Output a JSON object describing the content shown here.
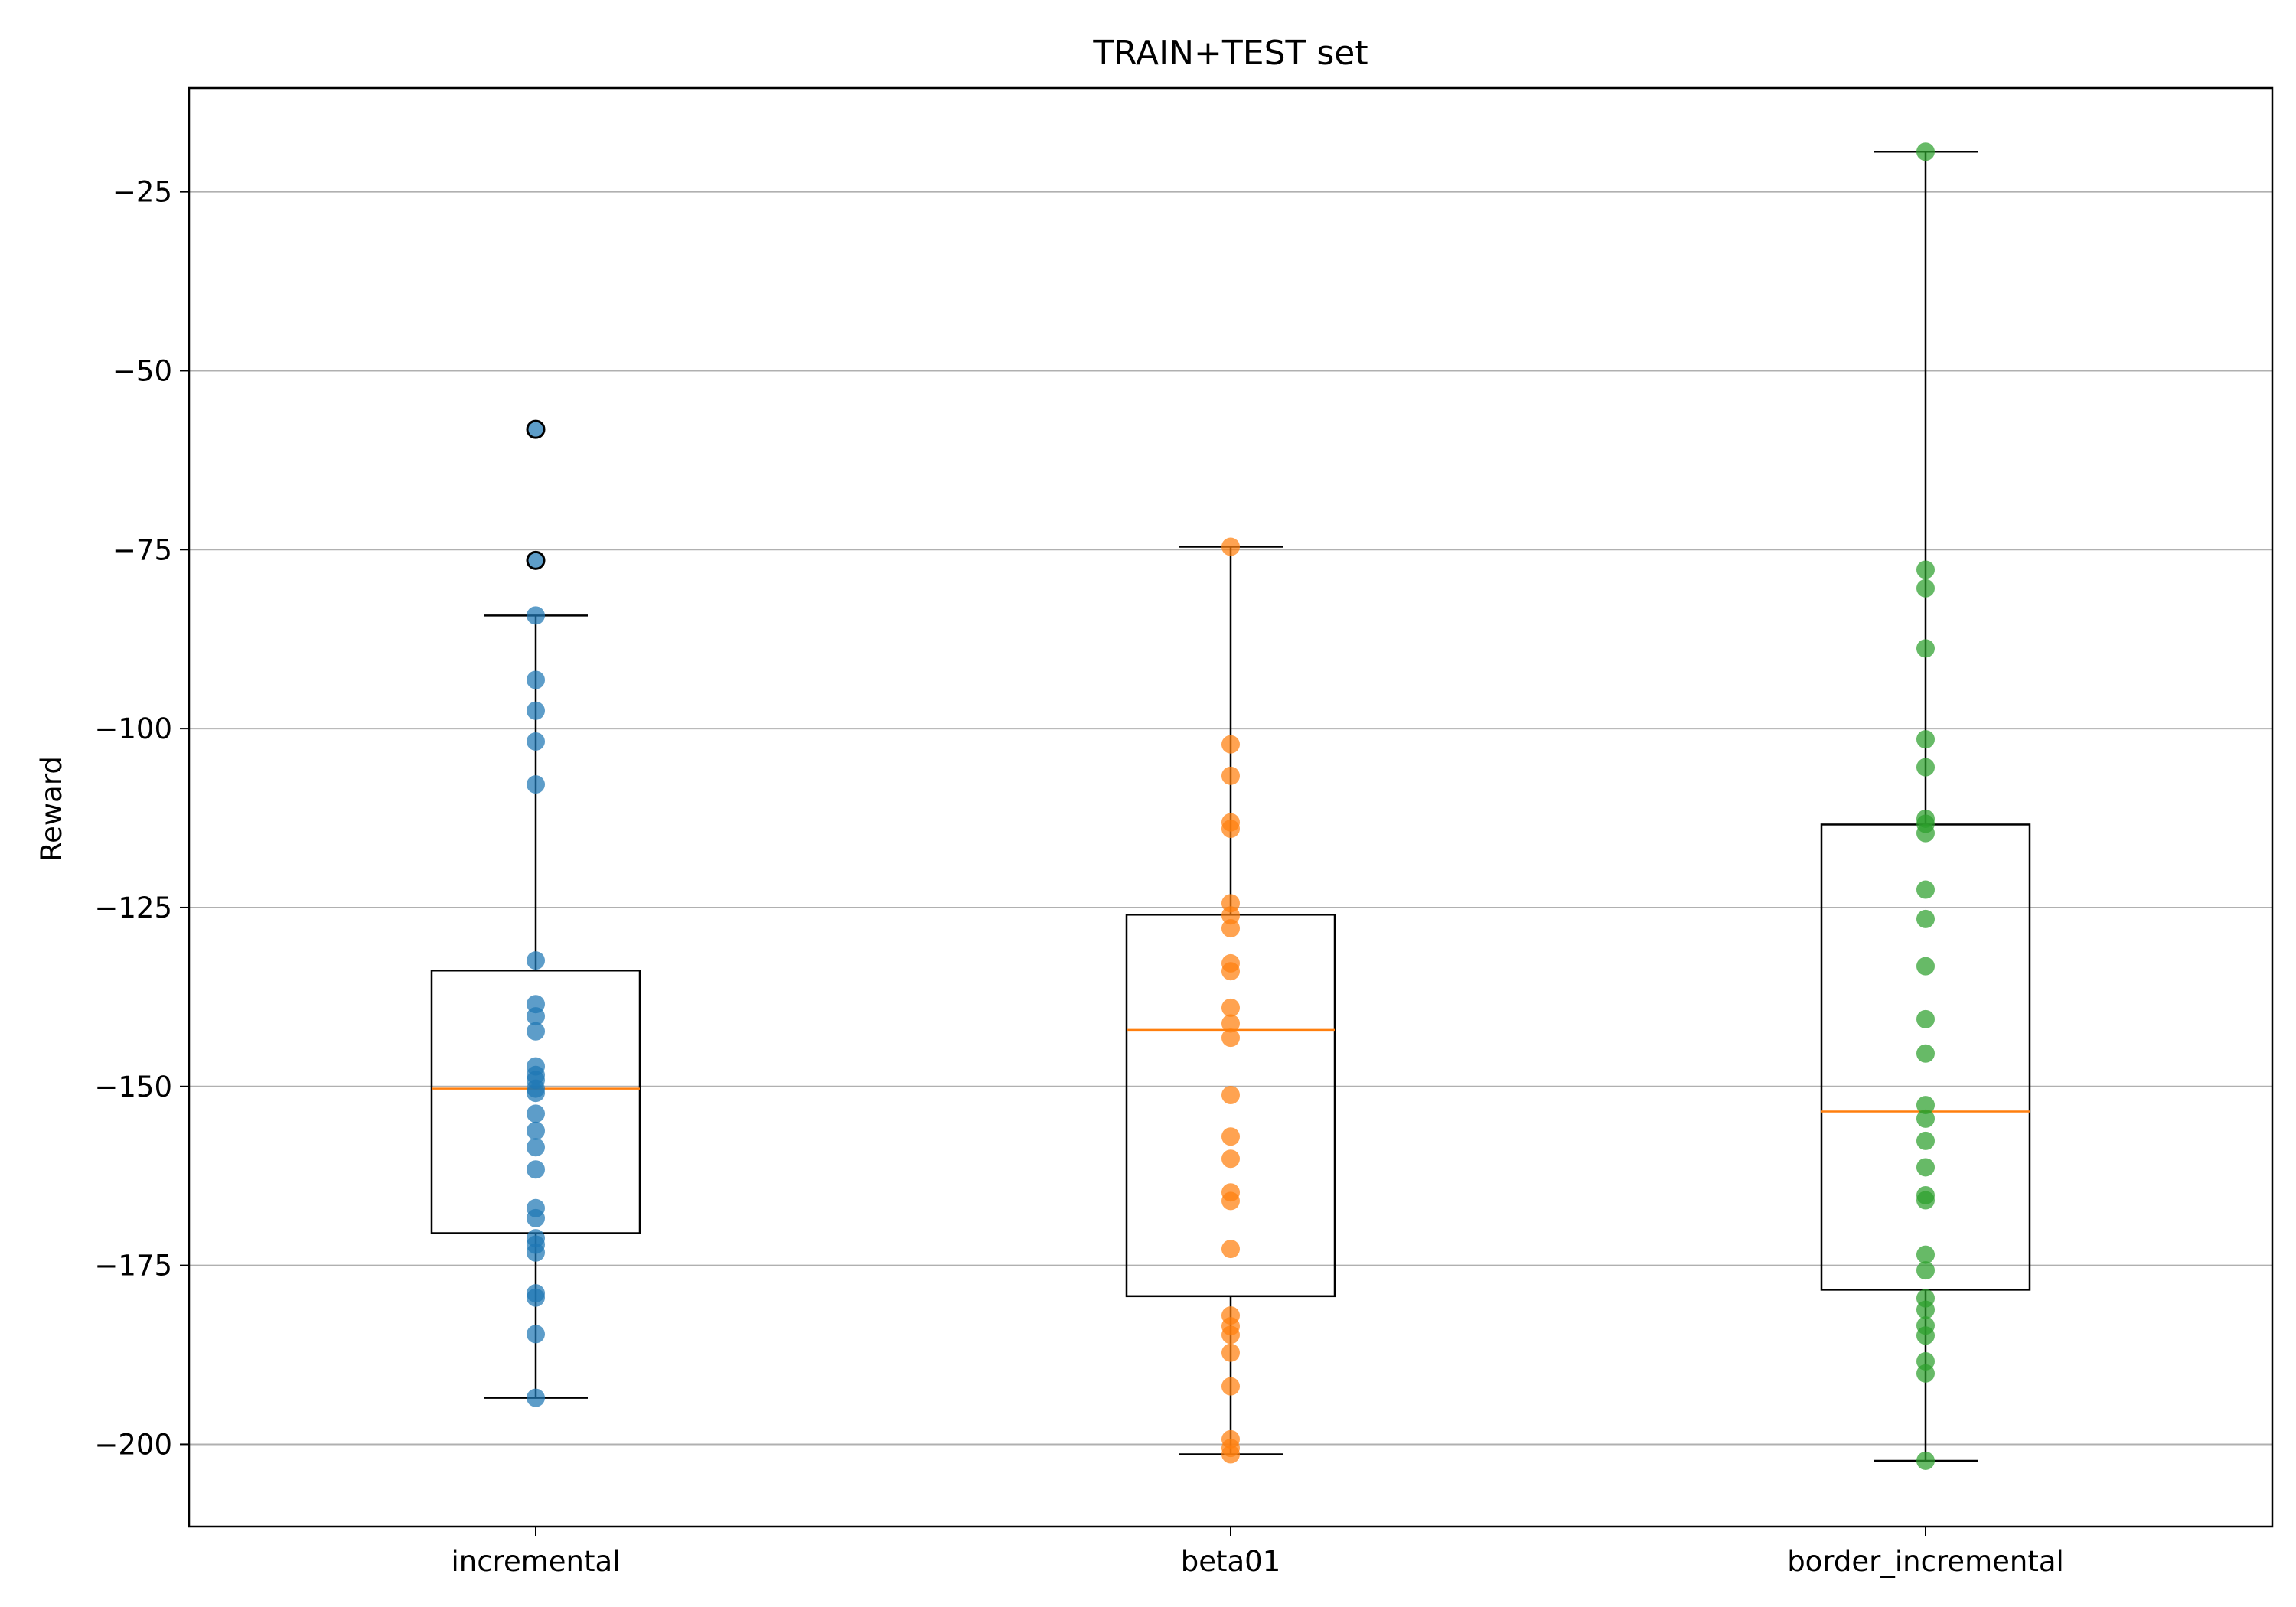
{
  "chart_data": {
    "type": "box",
    "title": "TRAIN+TEST set",
    "xlabel": "",
    "ylabel": "Reward",
    "ylim": [
      -211.5,
      -10.5
    ],
    "yticks": [
      -25,
      -50,
      -75,
      -100,
      -125,
      -150,
      -175,
      -200
    ],
    "ytick_labels": [
      "−25",
      "−50",
      "−75",
      "−100",
      "−125",
      "−150",
      "−175",
      "−200"
    ],
    "categories": [
      "incremental",
      "beta01",
      "border_incremental"
    ],
    "grid": "horizontal",
    "legend": "none",
    "series": [
      {
        "category": "incremental",
        "color": "#1f77b4",
        "whisker_low": -193.5,
        "q1": -170.5,
        "median": -150.3,
        "q3": -133.8,
        "whisker_high": -84.2,
        "outliers": [
          -58.2,
          -76.5
        ],
        "points": [
          -58.2,
          -76.5,
          -84.2,
          -93.2,
          -97.5,
          -101.8,
          -107.8,
          -132.4,
          -138.5,
          -140.2,
          -142.3,
          -147.2,
          -148.4,
          -149.1,
          -150.3,
          -150.9,
          -153.8,
          -156.2,
          -158.5,
          -161.6,
          -167.0,
          -168.4,
          -171.2,
          -172.1,
          -173.2,
          -178.9,
          -179.5,
          -184.6,
          -193.5
        ]
      },
      {
        "category": "beta01",
        "color": "#ff7f0e",
        "whisker_low": -201.4,
        "q1": -179.3,
        "median": -142.1,
        "q3": -126.0,
        "whisker_high": -74.6,
        "outliers": [],
        "points": [
          -74.6,
          -102.2,
          -106.6,
          -113.1,
          -114.0,
          -124.4,
          -126.1,
          -127.9,
          -132.8,
          -133.9,
          -139.0,
          -141.2,
          -143.2,
          -151.2,
          -157.0,
          -160.1,
          -164.8,
          -166.0,
          -172.7,
          -182.0,
          -183.5,
          -184.7,
          -187.2,
          -191.9,
          -199.3,
          -200.5,
          -201.4
        ]
      },
      {
        "category": "border_incremental",
        "color": "#2ca02c",
        "whisker_low": -202.3,
        "q1": -178.4,
        "median": -153.5,
        "q3": -113.4,
        "whisker_high": -19.4,
        "outliers": [],
        "points": [
          -19.4,
          -77.8,
          -80.4,
          -88.8,
          -101.5,
          -105.4,
          -112.6,
          -113.3,
          -114.6,
          -122.5,
          -126.6,
          -133.2,
          -140.6,
          -145.4,
          -152.6,
          -154.5,
          -157.6,
          -161.3,
          -165.2,
          -165.9,
          -173.5,
          -175.7,
          -179.6,
          -181.2,
          -183.4,
          -184.8,
          -188.4,
          -190.1,
          -202.3
        ]
      }
    ]
  }
}
